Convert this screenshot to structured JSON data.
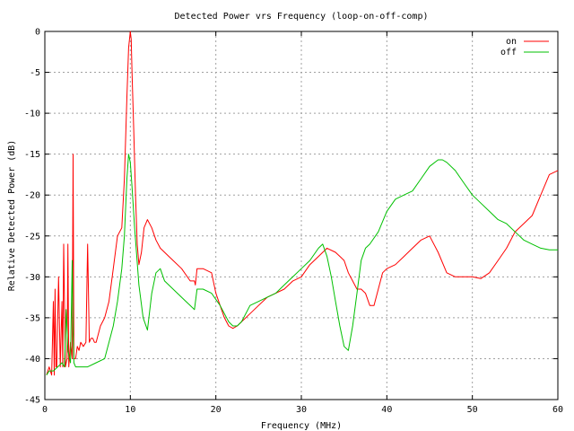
{
  "chart_data": {
    "type": "line",
    "title": "Detected Power vrs Frequency (loop-on-off-comp)",
    "xlabel": "Frequency (MHz)",
    "ylabel": "Relative Detected Power (dB)",
    "xlim": [
      0,
      60
    ],
    "ylim": [
      -45,
      0
    ],
    "xticks": [
      "0",
      "10",
      "20",
      "30",
      "40",
      "50",
      "60"
    ],
    "yticks": [
      "0",
      "-5",
      "-10",
      "-15",
      "-20",
      "-25",
      "-30",
      "-35",
      "-40",
      "-45"
    ],
    "grid": true,
    "legend_position": "top-right",
    "series": [
      {
        "name": "on",
        "color": "#ff0000",
        "x": [
          0.2,
          0.5,
          0.8,
          1.0,
          1.1,
          1.2,
          1.3,
          1.4,
          1.6,
          1.8,
          2.0,
          2.1,
          2.2,
          2.4,
          2.6,
          2.7,
          2.8,
          3.0,
          3.2,
          3.3,
          3.4,
          3.6,
          3.8,
          4.0,
          4.2,
          4.5,
          4.8,
          5.0,
          5.2,
          5.4,
          5.6,
          5.8,
          6.0,
          6.5,
          7.0,
          7.5,
          8.0,
          8.5,
          9.0,
          9.3,
          9.6,
          9.8,
          10.0,
          10.1,
          10.2,
          10.4,
          10.6,
          10.8,
          11.0,
          11.3,
          11.6,
          12.0,
          12.5,
          13.0,
          13.5,
          14.0,
          15.0,
          16.0,
          17.0,
          17.5,
          17.6,
          17.8,
          18.5,
          19.5,
          20.0,
          20.5,
          21.0,
          21.5,
          22.0,
          22.5,
          23.0,
          24.0,
          25.0,
          26.0,
          27.0,
          28.0,
          29.0,
          30.0,
          31.0,
          32.0,
          33.0,
          34.0,
          35.0,
          35.5,
          36.0,
          36.5,
          37.0,
          37.5,
          38.0,
          38.5,
          39.0,
          39.5,
          40.0,
          41.0,
          42.0,
          43.0,
          44.0,
          45.0,
          46.0,
          47.0,
          48.0,
          49.0,
          50.0,
          51.0,
          52.0,
          53.0,
          54.0,
          55.0,
          56.0,
          57.0,
          58.0,
          59.0,
          60.0
        ],
        "y": [
          -42,
          -41,
          -42,
          -33,
          -42,
          -31.5,
          -41,
          -41,
          -30,
          -41,
          -33,
          -41,
          -26,
          -41,
          -40,
          -26,
          -41,
          -38,
          -40,
          -15,
          -40,
          -40,
          -38.5,
          -39,
          -38,
          -38.5,
          -38,
          -26,
          -38,
          -37.5,
          -37.5,
          -38,
          -38,
          -36,
          -35,
          -33,
          -29,
          -25,
          -24,
          -18,
          -8,
          -2,
          0,
          -1,
          -5,
          -12,
          -20,
          -26,
          -28.5,
          -27,
          -24,
          -23,
          -24,
          -25.5,
          -26.5,
          -27,
          -28,
          -29,
          -30.5,
          -30.5,
          -31,
          -29,
          -29,
          -29.5,
          -32,
          -33.5,
          -35,
          -36,
          -36.3,
          -36,
          -35.5,
          -34.5,
          -33.5,
          -32.5,
          -32,
          -31.5,
          -30.5,
          -30,
          -28.5,
          -27.5,
          -26.5,
          -27,
          -28,
          -29.5,
          -30.5,
          -31.5,
          -31.5,
          -32,
          -33.5,
          -33.5,
          -31.5,
          -29.5,
          -29,
          -28.5,
          -27.5,
          -26.5,
          -25.5,
          -25,
          -27,
          -29.5,
          -30,
          -30,
          -30,
          -30.2,
          -29.5,
          -28,
          -26.5,
          -24.5,
          -23.5,
          -22.5,
          -20,
          -17.5,
          -17
        ]
      },
      {
        "name": "off",
        "color": "#00c000",
        "x": [
          0.2,
          0.5,
          1.0,
          1.5,
          2.0,
          2.3,
          2.5,
          2.7,
          3.0,
          3.2,
          3.3,
          3.4,
          3.6,
          4.0,
          5.0,
          6.0,
          7.0,
          7.5,
          8.0,
          8.5,
          9.0,
          9.3,
          9.6,
          9.8,
          10.0,
          10.2,
          10.5,
          11.0,
          11.5,
          12.0,
          12.5,
          13.0,
          13.5,
          14.0,
          15.0,
          16.0,
          17.0,
          17.5,
          17.8,
          18.5,
          19.5,
          20.5,
          21.5,
          22.0,
          22.5,
          23.0,
          24.0,
          25.0,
          26.0,
          27.0,
          28.0,
          29.0,
          30.0,
          31.0,
          32.0,
          32.5,
          33.0,
          33.5,
          34.0,
          34.5,
          35.0,
          35.5,
          36.0,
          36.5,
          37.0,
          37.5,
          38.0,
          39.0,
          40.0,
          41.0,
          42.0,
          43.0,
          44.0,
          45.0,
          46.0,
          46.5,
          47.0,
          48.0,
          49.0,
          50.0,
          51.0,
          52.0,
          53.0,
          54.0,
          55.0,
          56.0,
          57.0,
          58.0,
          59.0,
          60.0
        ],
        "y": [
          -42,
          -41.5,
          -41.5,
          -41,
          -40.5,
          -41,
          -34,
          -39,
          -40.5,
          -28,
          -37,
          -40.5,
          -41,
          -41,
          -41,
          -40.5,
          -40,
          -38,
          -36,
          -33,
          -29,
          -25,
          -18,
          -15,
          -16,
          -19,
          -24,
          -31,
          -35,
          -36.5,
          -32,
          -29.5,
          -29,
          -30.5,
          -31.5,
          -32.5,
          -33.5,
          -34,
          -31.5,
          -31.5,
          -32,
          -33.5,
          -35.5,
          -36,
          -36,
          -35.5,
          -33.5,
          -33,
          -32.5,
          -32,
          -31,
          -30,
          -29,
          -28,
          -26.5,
          -26,
          -27.5,
          -30,
          -33,
          -36,
          -38.5,
          -39,
          -36,
          -32,
          -28,
          -26.5,
          -26,
          -24.5,
          -22,
          -20.5,
          -20,
          -19.5,
          -18,
          -16.5,
          -15.7,
          -15.7,
          -16,
          -17,
          -18.5,
          -20,
          -21,
          -22,
          -23,
          -23.5,
          -24.5,
          -25.5,
          -26,
          -26.5,
          -26.7,
          -26.7
        ]
      }
    ]
  }
}
